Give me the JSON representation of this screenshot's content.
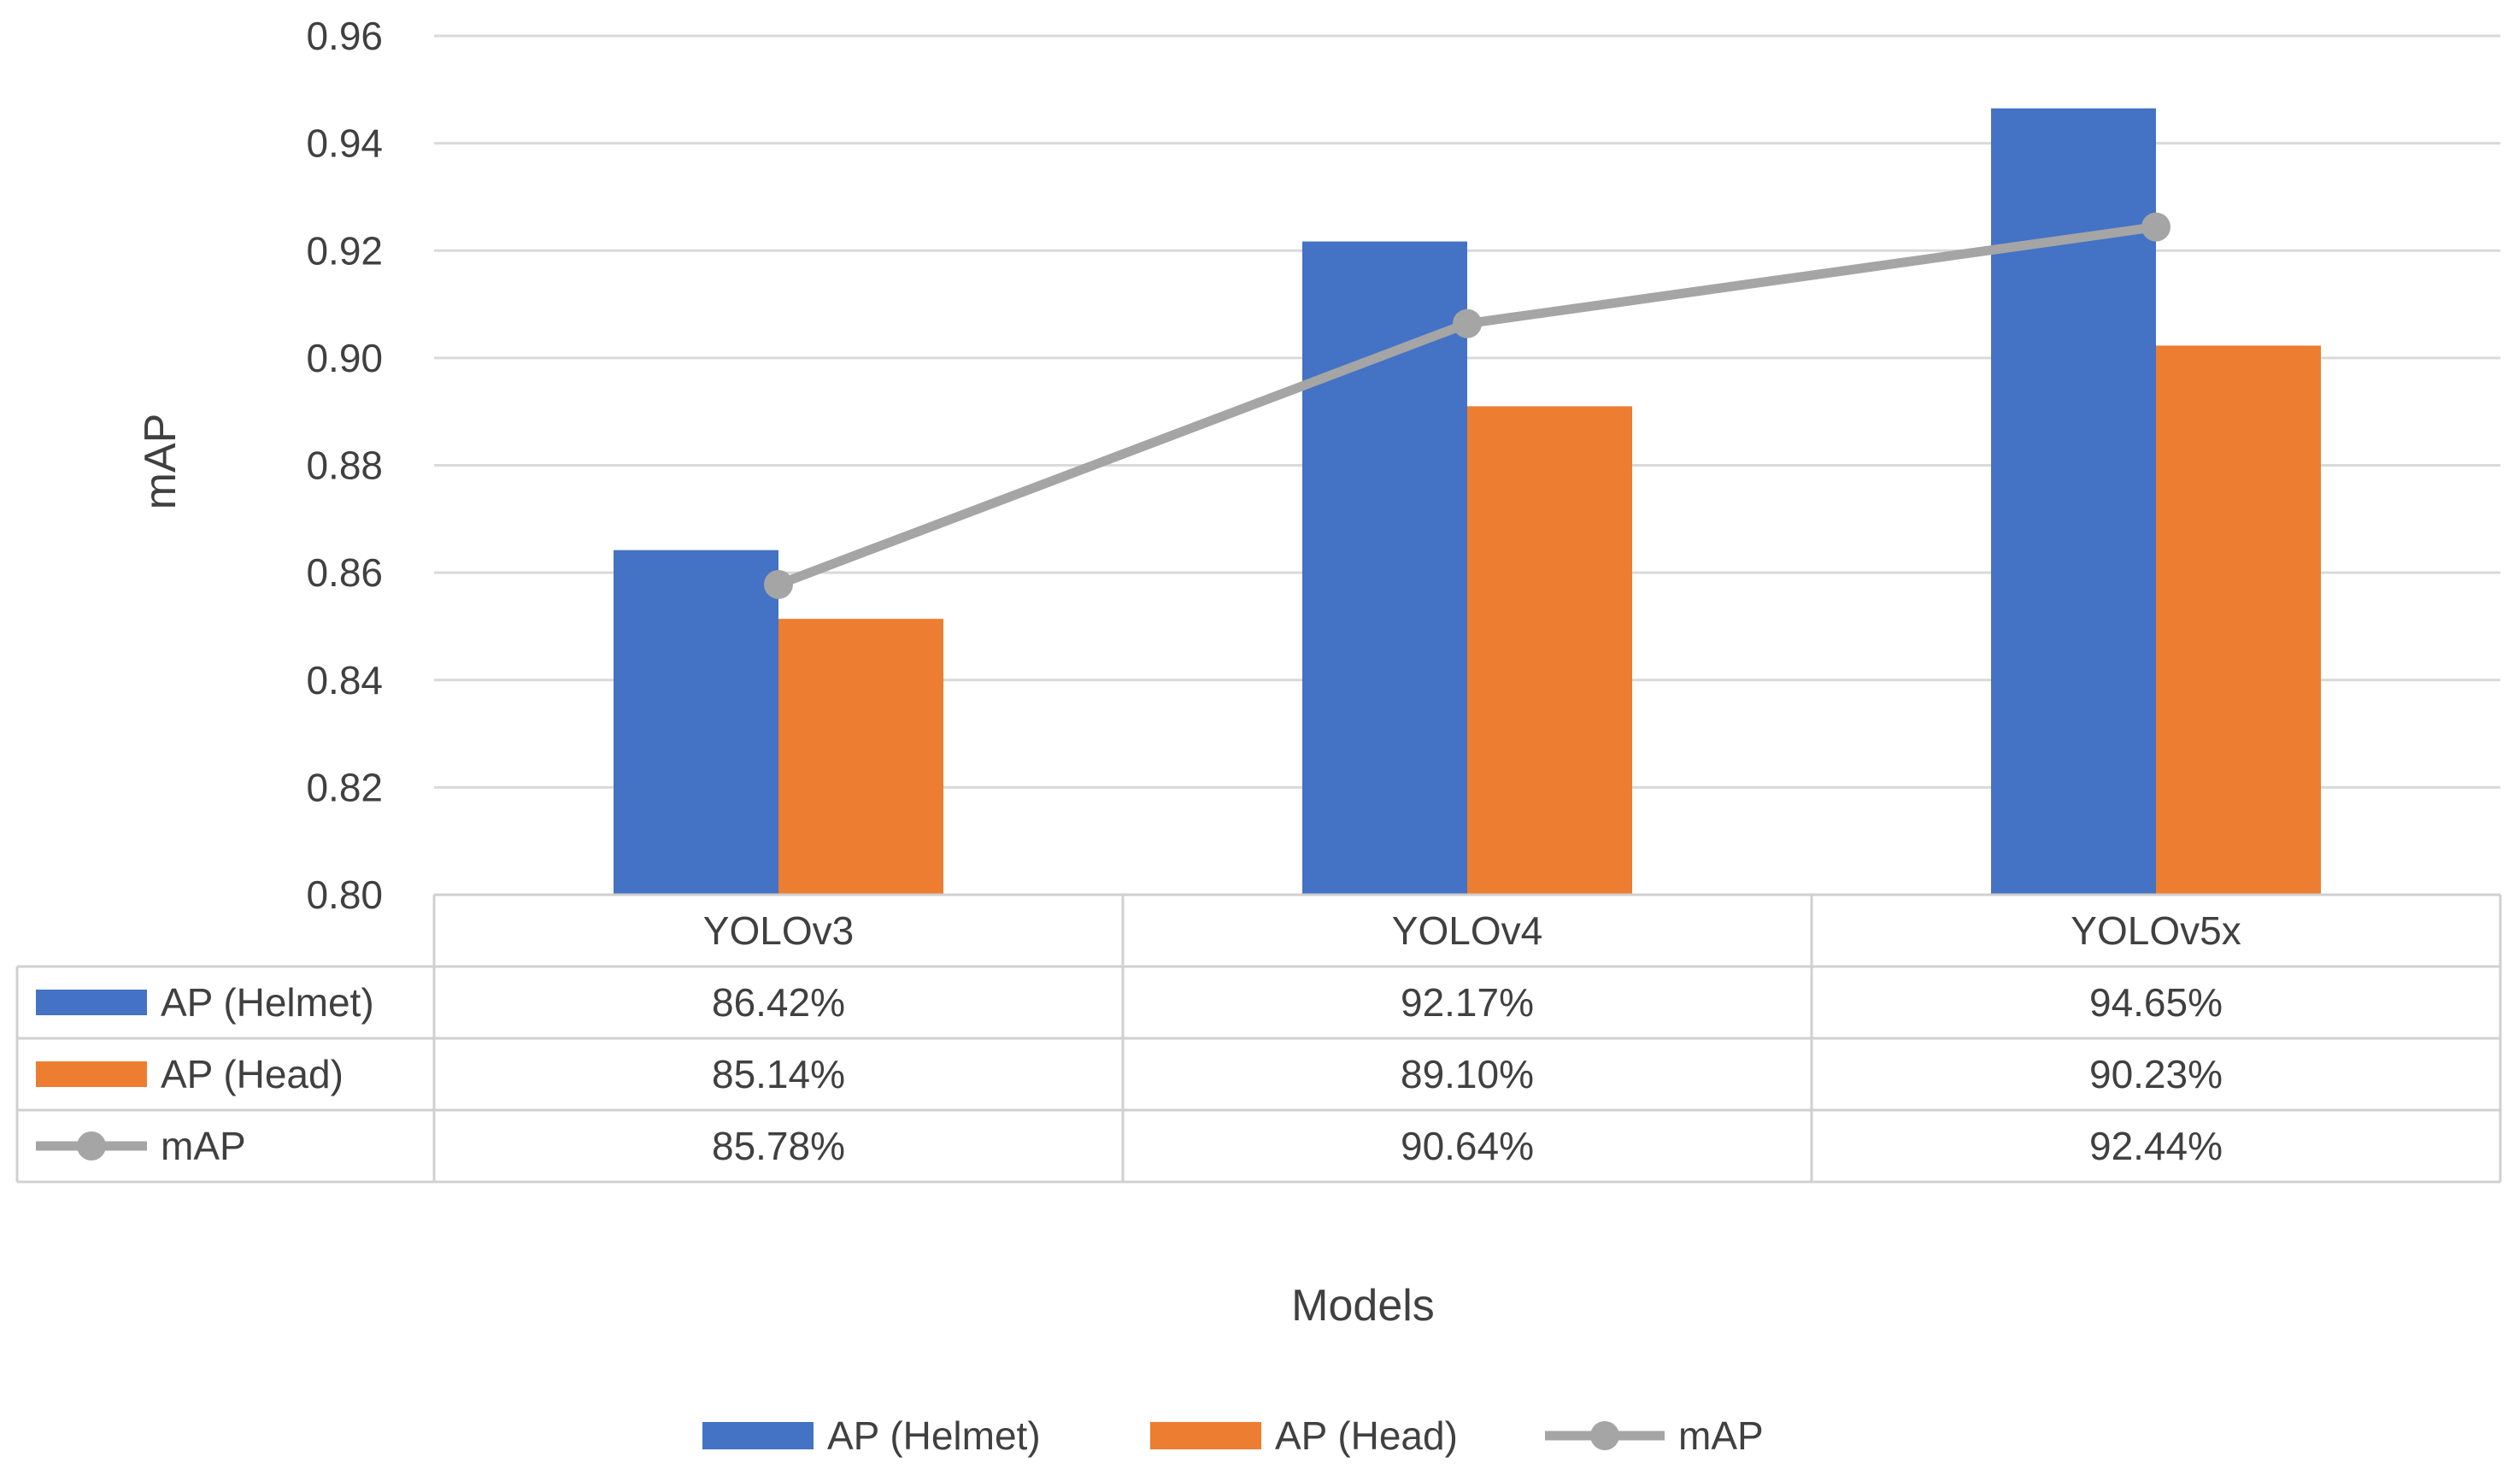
{
  "chart_data": {
    "type": "bar",
    "title": "",
    "xlabel": "Models",
    "ylabel": "mAP",
    "ylim": [
      0.8,
      0.96
    ],
    "yticks": [
      "0.80",
      "0.82",
      "0.84",
      "0.86",
      "0.88",
      "0.90",
      "0.92",
      "0.94",
      "0.96"
    ],
    "grid": true,
    "legend_position": "bottom",
    "categories": [
      "YOLOv3",
      "YOLOv4",
      "YOLOv5x"
    ],
    "series": [
      {
        "name": "AP (Helmet)",
        "kind": "bar",
        "color": "#4472C4",
        "values": [
          0.8642,
          0.9217,
          0.9465
        ],
        "labels": [
          "86.42%",
          "92.17%",
          "94.65%"
        ]
      },
      {
        "name": "AP (Head)",
        "kind": "bar",
        "color": "#ED7D31",
        "values": [
          0.8514,
          0.891,
          0.9023
        ],
        "labels": [
          "85.14%",
          "89.10%",
          "90.23%"
        ]
      },
      {
        "name": "mAP",
        "kind": "line",
        "color": "#A5A5A5",
        "values": [
          0.8578,
          0.9064,
          0.9244
        ],
        "labels": [
          "85.78%",
          "90.64%",
          "92.44%"
        ]
      }
    ]
  }
}
